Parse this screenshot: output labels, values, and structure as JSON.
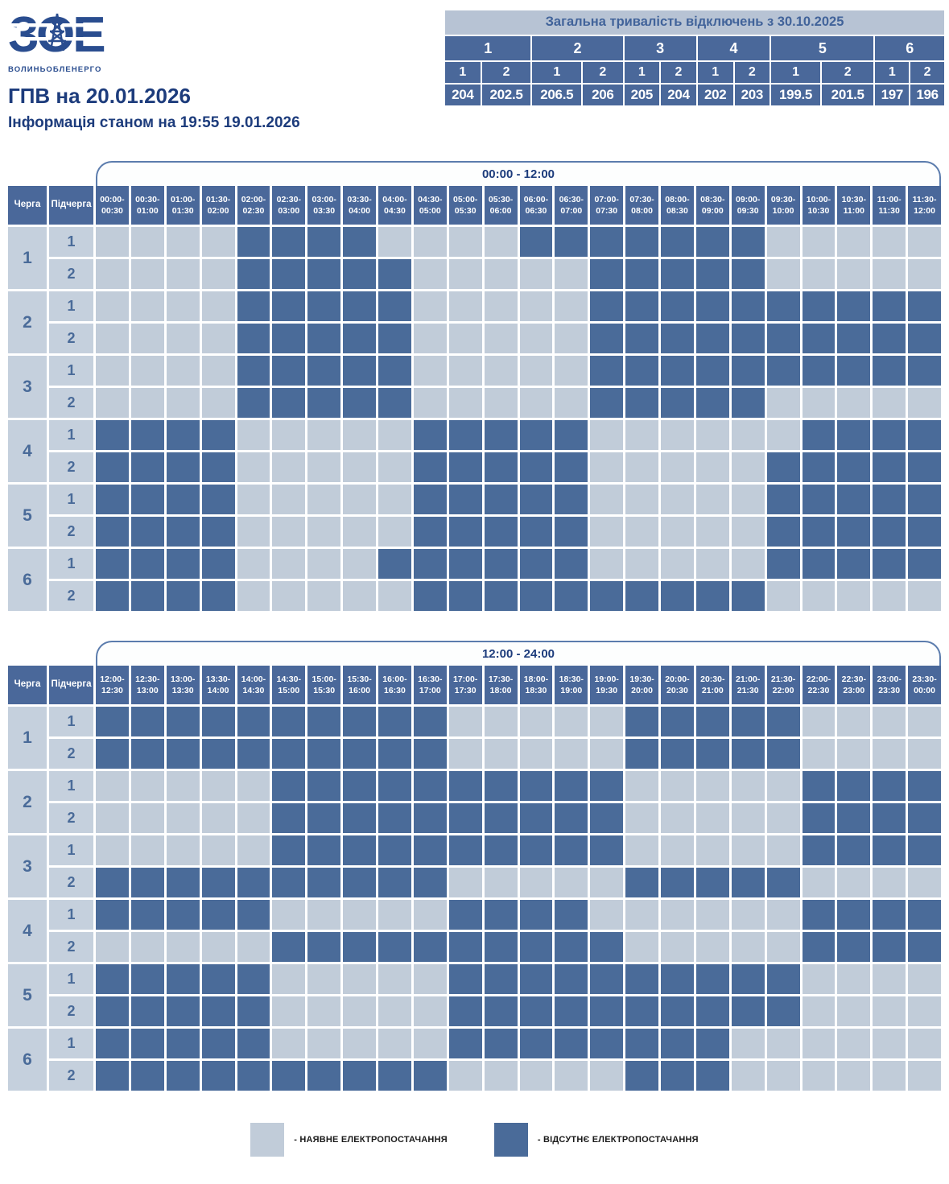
{
  "logo": {
    "acronym": "ЗОЕ",
    "company": "ВОЛИНЬОБЛЕНЕРГО"
  },
  "title": "ГПВ на 20.01.2026",
  "subtitle": "Інформація станом на 19:55 19.01.2026",
  "summary": {
    "title": "Загальна тривалість відключень з 30.10.2025",
    "groups": [
      "1",
      "2",
      "3",
      "4",
      "5",
      "6"
    ],
    "subgroups": [
      "1",
      "2",
      "1",
      "2",
      "1",
      "2",
      "1",
      "2",
      "1",
      "2",
      "1",
      "2"
    ],
    "values": [
      "204",
      "202.5",
      "206.5",
      "206",
      "205",
      "204",
      "202",
      "203",
      "199.5",
      "201.5",
      "197",
      "196"
    ]
  },
  "chart_data": {
    "type": "heatmap",
    "cell_states": {
      "0": "наявне електропостачання",
      "1": "відсутнє електропостачання"
    },
    "queue_header": "Черга",
    "subqueue_header": "Підчерга",
    "tables": [
      {
        "period": "00:00 - 12:00",
        "col_headers": [
          "00:00-00:30",
          "00:30-01:00",
          "01:00-01:30",
          "01:30-02:00",
          "02:00-02:30",
          "02:30-03:00",
          "03:00-03:30",
          "03:30-04:00",
          "04:00-04:30",
          "04:30-05:00",
          "05:00-05:30",
          "05:30-06:00",
          "06:00-06:30",
          "06:30-07:00",
          "07:00-07:30",
          "07:30-08:00",
          "08:00-08:30",
          "08:30-09:00",
          "09:00-09:30",
          "09:30-10:00",
          "10:00-10:30",
          "10:30-11:00",
          "11:00-11:30",
          "11:30-12:00"
        ],
        "rows": [
          {
            "queue": "1",
            "subqueue": "1",
            "cells": [
              0,
              0,
              0,
              0,
              1,
              1,
              1,
              1,
              0,
              0,
              0,
              0,
              1,
              1,
              1,
              1,
              1,
              1,
              1,
              0,
              0,
              0,
              0,
              0
            ]
          },
          {
            "queue": "1",
            "subqueue": "2",
            "cells": [
              0,
              0,
              0,
              0,
              1,
              1,
              1,
              1,
              1,
              0,
              0,
              0,
              0,
              0,
              1,
              1,
              1,
              1,
              1,
              0,
              0,
              0,
              0,
              0
            ]
          },
          {
            "queue": "2",
            "subqueue": "1",
            "cells": [
              0,
              0,
              0,
              0,
              1,
              1,
              1,
              1,
              1,
              0,
              0,
              0,
              0,
              0,
              1,
              1,
              1,
              1,
              1,
              1,
              1,
              1,
              1,
              1
            ]
          },
          {
            "queue": "2",
            "subqueue": "2",
            "cells": [
              0,
              0,
              0,
              0,
              1,
              1,
              1,
              1,
              1,
              0,
              0,
              0,
              0,
              0,
              1,
              1,
              1,
              1,
              1,
              1,
              1,
              1,
              1,
              1
            ]
          },
          {
            "queue": "3",
            "subqueue": "1",
            "cells": [
              0,
              0,
              0,
              0,
              1,
              1,
              1,
              1,
              1,
              0,
              0,
              0,
              0,
              0,
              1,
              1,
              1,
              1,
              1,
              1,
              1,
              1,
              1,
              1
            ]
          },
          {
            "queue": "3",
            "subqueue": "2",
            "cells": [
              0,
              0,
              0,
              0,
              1,
              1,
              1,
              1,
              1,
              0,
              0,
              0,
              0,
              0,
              1,
              1,
              1,
              1,
              1,
              0,
              0,
              0,
              0,
              0
            ]
          },
          {
            "queue": "4",
            "subqueue": "1",
            "cells": [
              1,
              1,
              1,
              1,
              0,
              0,
              0,
              0,
              0,
              1,
              1,
              1,
              1,
              1,
              0,
              0,
              0,
              0,
              0,
              0,
              1,
              1,
              1,
              1
            ]
          },
          {
            "queue": "4",
            "subqueue": "2",
            "cells": [
              1,
              1,
              1,
              1,
              0,
              0,
              0,
              0,
              0,
              1,
              1,
              1,
              1,
              1,
              0,
              0,
              0,
              0,
              0,
              1,
              1,
              1,
              1,
              1
            ]
          },
          {
            "queue": "5",
            "subqueue": "1",
            "cells": [
              1,
              1,
              1,
              1,
              0,
              0,
              0,
              0,
              0,
              1,
              1,
              1,
              1,
              1,
              0,
              0,
              0,
              0,
              0,
              1,
              1,
              1,
              1,
              1
            ]
          },
          {
            "queue": "5",
            "subqueue": "2",
            "cells": [
              1,
              1,
              1,
              1,
              0,
              0,
              0,
              0,
              0,
              1,
              1,
              1,
              1,
              1,
              0,
              0,
              0,
              0,
              0,
              1,
              1,
              1,
              1,
              1
            ]
          },
          {
            "queue": "6",
            "subqueue": "1",
            "cells": [
              1,
              1,
              1,
              1,
              0,
              0,
              0,
              0,
              1,
              1,
              1,
              1,
              1,
              1,
              0,
              0,
              0,
              0,
              0,
              1,
              1,
              1,
              1,
              1
            ]
          },
          {
            "queue": "6",
            "subqueue": "2",
            "cells": [
              1,
              1,
              1,
              1,
              0,
              0,
              0,
              0,
              0,
              1,
              1,
              1,
              1,
              1,
              1,
              1,
              1,
              1,
              1,
              0,
              0,
              0,
              0,
              0
            ]
          }
        ]
      },
      {
        "period": "12:00 - 24:00",
        "col_headers": [
          "12:00-12:30",
          "12:30-13:00",
          "13:00-13:30",
          "13:30-14:00",
          "14:00-14:30",
          "14:30-15:00",
          "15:00-15:30",
          "15:30-16:00",
          "16:00-16:30",
          "16:30-17:00",
          "17:00-17:30",
          "17:30-18:00",
          "18:00-18:30",
          "18:30-19:00",
          "19:00-19:30",
          "19:30-20:00",
          "20:00-20:30",
          "20:30-21:00",
          "21:00-21:30",
          "21:30-22:00",
          "22:00-22:30",
          "22:30-23:00",
          "23:00-23:30",
          "23:30-00:00"
        ],
        "rows": [
          {
            "queue": "1",
            "subqueue": "1",
            "cells": [
              1,
              1,
              1,
              1,
              1,
              1,
              1,
              1,
              1,
              1,
              0,
              0,
              0,
              0,
              0,
              1,
              1,
              1,
              1,
              1,
              0,
              0,
              0,
              0
            ]
          },
          {
            "queue": "1",
            "subqueue": "2",
            "cells": [
              1,
              1,
              1,
              1,
              1,
              1,
              1,
              1,
              1,
              1,
              0,
              0,
              0,
              0,
              0,
              1,
              1,
              1,
              1,
              1,
              0,
              0,
              0,
              0
            ]
          },
          {
            "queue": "2",
            "subqueue": "1",
            "cells": [
              0,
              0,
              0,
              0,
              0,
              1,
              1,
              1,
              1,
              1,
              1,
              1,
              1,
              1,
              1,
              0,
              0,
              0,
              0,
              0,
              1,
              1,
              1,
              1
            ]
          },
          {
            "queue": "2",
            "subqueue": "2",
            "cells": [
              0,
              0,
              0,
              0,
              0,
              1,
              1,
              1,
              1,
              1,
              1,
              1,
              1,
              1,
              1,
              0,
              0,
              0,
              0,
              0,
              1,
              1,
              1,
              1
            ]
          },
          {
            "queue": "3",
            "subqueue": "1",
            "cells": [
              0,
              0,
              0,
              0,
              0,
              1,
              1,
              1,
              1,
              1,
              1,
              1,
              1,
              1,
              1,
              0,
              0,
              0,
              0,
              0,
              1,
              1,
              1,
              1
            ]
          },
          {
            "queue": "3",
            "subqueue": "2",
            "cells": [
              1,
              1,
              1,
              1,
              1,
              1,
              1,
              1,
              1,
              1,
              0,
              0,
              0,
              0,
              0,
              1,
              1,
              1,
              1,
              1,
              0,
              0,
              0,
              0
            ]
          },
          {
            "queue": "4",
            "subqueue": "1",
            "cells": [
              1,
              1,
              1,
              1,
              1,
              0,
              0,
              0,
              0,
              0,
              1,
              1,
              1,
              1,
              0,
              0,
              0,
              0,
              0,
              0,
              1,
              1,
              1,
              1
            ]
          },
          {
            "queue": "4",
            "subqueue": "2",
            "cells": [
              0,
              0,
              0,
              0,
              0,
              1,
              1,
              1,
              1,
              1,
              1,
              1,
              1,
              1,
              1,
              0,
              0,
              0,
              0,
              0,
              1,
              1,
              1,
              1
            ]
          },
          {
            "queue": "5",
            "subqueue": "1",
            "cells": [
              1,
              1,
              1,
              1,
              1,
              0,
              0,
              0,
              0,
              0,
              1,
              1,
              1,
              1,
              1,
              1,
              1,
              1,
              1,
              1,
              0,
              0,
              0,
              0
            ]
          },
          {
            "queue": "5",
            "subqueue": "2",
            "cells": [
              1,
              1,
              1,
              1,
              1,
              0,
              0,
              0,
              0,
              0,
              1,
              1,
              1,
              1,
              1,
              1,
              1,
              1,
              1,
              1,
              0,
              0,
              0,
              0
            ]
          },
          {
            "queue": "6",
            "subqueue": "1",
            "cells": [
              1,
              1,
              1,
              1,
              1,
              0,
              0,
              0,
              0,
              0,
              1,
              1,
              1,
              1,
              1,
              1,
              1,
              1,
              0,
              0,
              0,
              0,
              0,
              0
            ]
          },
          {
            "queue": "6",
            "subqueue": "2",
            "cells": [
              1,
              1,
              1,
              1,
              1,
              1,
              1,
              1,
              1,
              1,
              0,
              0,
              0,
              0,
              0,
              1,
              1,
              1,
              0,
              0,
              0,
              0,
              0,
              0
            ]
          }
        ]
      }
    ]
  },
  "legend": [
    {
      "key": "power_on",
      "label": "- НАЯВНЕ ЕЛЕКТРОПОСТАЧАННЯ"
    },
    {
      "key": "power_off",
      "label": "- ВІДСУТНЄ ЕЛЕКТРОПОСТАЧАННЯ"
    }
  ],
  "colors": {
    "power_on": "#c1ccd9",
    "power_off": "#4a6b99",
    "header_bg": "#4a689a",
    "label_bg": "#c5d0dd",
    "label_text": "#4a6b99",
    "accent_text": "#1d3c7c",
    "brand": "#2a4d8f",
    "summary_title_bg": "#b7c3d4",
    "summary_title_text": "#41639a",
    "tab_border": "#5b7cad"
  }
}
